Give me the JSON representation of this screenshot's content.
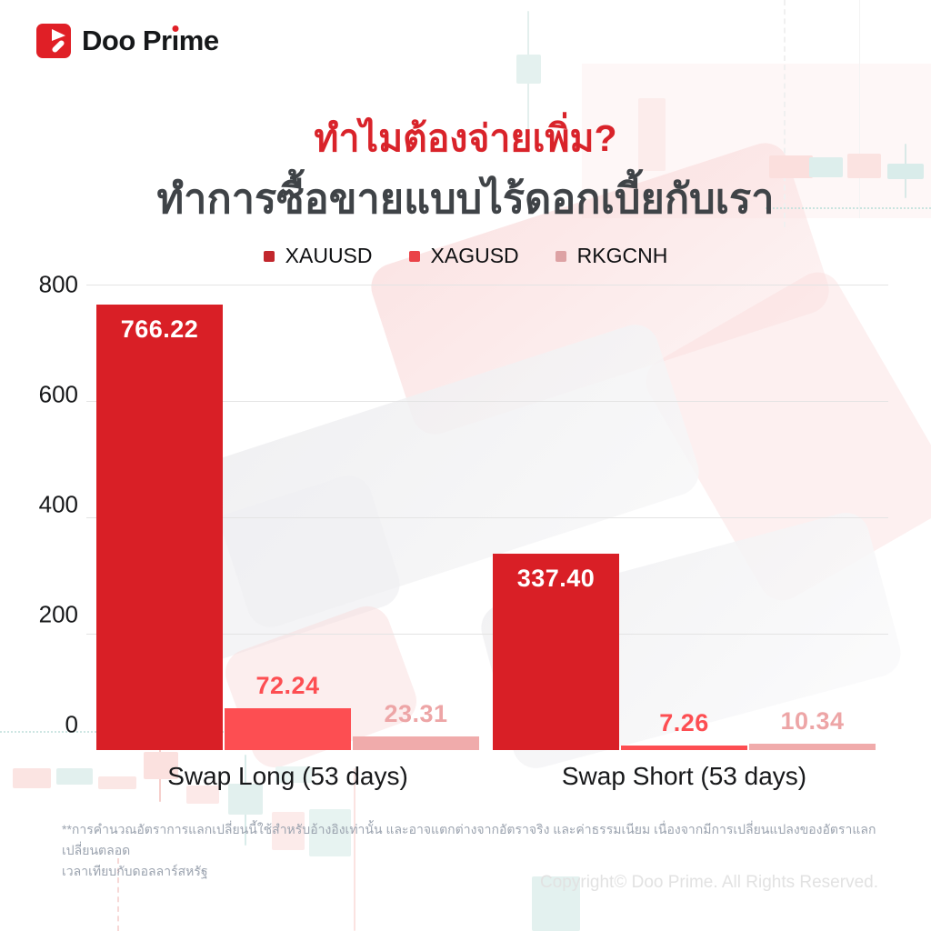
{
  "brand": {
    "name": "Doo Prime"
  },
  "header": {
    "title": "ทำไมต้องจ่ายเพิ่ม?",
    "subtitle": "ทำการซื้อขายแบบไร้ดอกเบี้ยกับเรา"
  },
  "chart_data": {
    "type": "bar",
    "categories": [
      "Swap Long (53 days)",
      "Swap Short (53 days)"
    ],
    "series": [
      {
        "name": "XAUUSD",
        "color": "#d91f26",
        "swatch": "#c2272d",
        "values": [
          766.22,
          337.4
        ],
        "labels": [
          "766.22",
          "337.40"
        ],
        "label_inside": true,
        "label_color": "#ffffff"
      },
      {
        "name": "XAGUSD",
        "color": "#fd4e52",
        "swatch": "#ea4348",
        "values": [
          72.24,
          7.26
        ],
        "labels": [
          "72.24",
          "7.26"
        ],
        "label_inside": false,
        "label_color": "#fd4e52"
      },
      {
        "name": "RKGCNH",
        "color": "#f0abab",
        "swatch": "#dda2a4",
        "values": [
          23.31,
          10.34
        ],
        "labels": [
          "23.31",
          "10.34"
        ],
        "label_inside": false,
        "label_color": "#eda5a6"
      }
    ],
    "ylim": [
      0,
      800
    ],
    "yticks": [
      0,
      200,
      400,
      600,
      800
    ],
    "grid": true,
    "legend_position": "top"
  },
  "footnote": {
    "line1": "**การคำนวณอัตราการแลกเปลี่ยนนี้ใช้สำหรับอ้างอิงเท่านั้น และอาจแตกต่างจากอัตราจริง และค่าธรรมเนียม เนื่องจากมีการเปลี่ยนแปลงของอัตราแลกเปลี่ยนตลอด",
    "line2": "เวลาเทียบกับดอลลาร์สหรัฐ"
  },
  "copyright": "Copyright© Doo Prime. All Rights Reserved."
}
